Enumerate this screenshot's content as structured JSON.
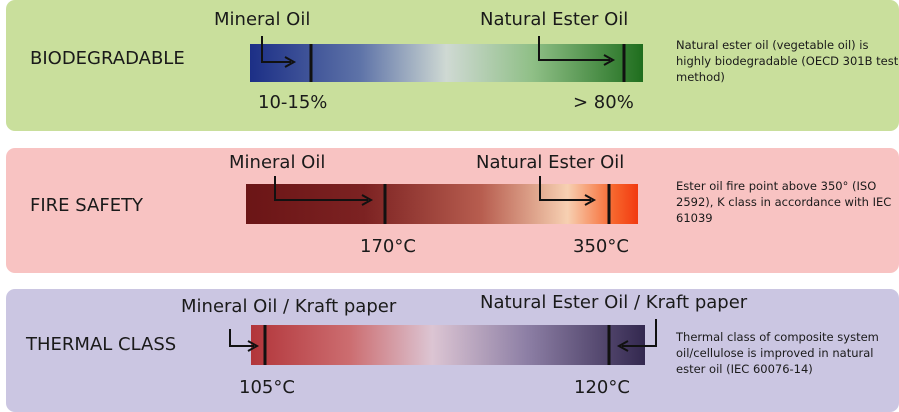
{
  "panels": {
    "biodegradable": {
      "category": "BIODEGRADABLE",
      "label_left": "Mineral Oil",
      "label_right": "Natural Ester Oil",
      "value_left": "10-15%",
      "value_right": "> 80%",
      "note": "Natural ester oil (vegetable oil) is highly biodegradable (OECD 301B test method)",
      "colors": {
        "bg": "#c9df9c",
        "bar_start": "#1c2f86",
        "bar_end": "#1f6e1e"
      }
    },
    "fire_safety": {
      "category": "FIRE SAFETY",
      "label_left": "Mineral Oil",
      "label_right": "Natural Ester Oil",
      "value_left": "170°C",
      "value_right": "350°C",
      "note": "Ester oil fire point above 350° (ISO 2592), K class in accordance with IEC 61039",
      "colors": {
        "bg": "#f8c3c2",
        "bar_start": "#6b1516",
        "bar_end": "#f23a10"
      }
    },
    "thermal_class": {
      "category": "THERMAL CLASS",
      "label_left": "Mineral Oil / Kraft paper",
      "label_right": "Natural Ester Oil / Kraft paper",
      "value_left": "105°C",
      "value_right": "120°C",
      "note": "Thermal class of composite system oil/cellulose is improved in natural ester oil (IEC 60076-14)",
      "colors": {
        "bg": "#cbc6e2",
        "bar_start": "#b2353a",
        "bar_end": "#33284f"
      }
    }
  }
}
